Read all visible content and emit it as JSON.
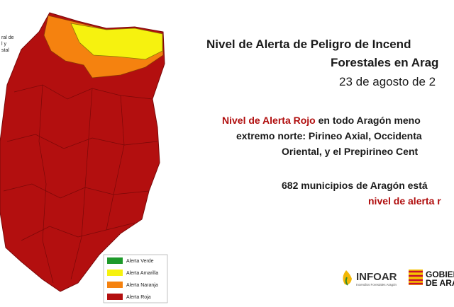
{
  "map_note": [
    "ral de",
    "l y",
    "stal"
  ],
  "legend": [
    "Alerta Verde",
    "Alerta Amarilla",
    "Alerta Naranja",
    "Alerta Roja"
  ],
  "header": {
    "title_line1": "Nivel de Alerta de Peligro de Incend",
    "title_line2": "Forestales en Arag",
    "date": "23 de agosto de 2"
  },
  "notice": {
    "highlight": "Nivel de Alerta Rojo",
    "line1_rest": " en todo Aragón meno",
    "line2": "extremo norte: Pirineo Axial, Occidenta",
    "line3": "Oriental, y el Prepirineo Cent"
  },
  "municipalities": {
    "line1": "682 municipios de Aragón está",
    "line2": "nivel de alerta r"
  },
  "logos": {
    "infoar": "INFOAR",
    "infoar_sub": "Incendios Forestales Aragón",
    "gob1": "GOBIER",
    "gob2": "DE ARA"
  }
}
